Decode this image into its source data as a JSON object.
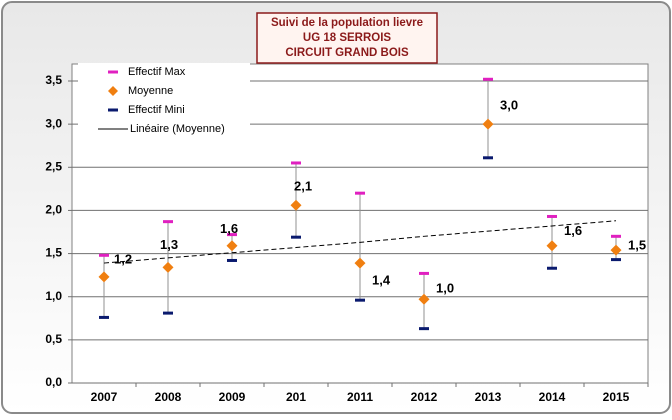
{
  "chart_data": {
    "type": "range",
    "title": [
      "Suivi de la population lievre",
      "UG  18  SERROIS",
      "CIRCUIT GRAND BOIS"
    ],
    "categories": [
      "2007",
      "2008",
      "2009",
      "201",
      "2011",
      "2012",
      "2013",
      "2014",
      "2015"
    ],
    "series": [
      {
        "name": "Effectif Max",
        "color": "#e020c0",
        "values": [
          1.48,
          1.87,
          1.72,
          2.55,
          2.2,
          1.27,
          3.52,
          1.93,
          1.7
        ]
      },
      {
        "name": "Moyenne",
        "color": "#f07f10",
        "values": [
          1.23,
          1.34,
          1.59,
          2.06,
          1.39,
          0.97,
          3.0,
          1.59,
          1.54
        ],
        "value_labels": [
          "1,2",
          "1,3",
          "1,6",
          "2,1",
          "1,4",
          "1,0",
          "3,0",
          "1,6",
          "1,5"
        ]
      },
      {
        "name": "Effectif Mini",
        "color": "#0a1a6e",
        "values": [
          0.76,
          0.81,
          1.42,
          1.69,
          0.96,
          0.63,
          2.61,
          1.33,
          1.43
        ]
      },
      {
        "name": "Linéaire (Moyenne)",
        "color": "#000000",
        "values": [
          1.39,
          1.45,
          1.51,
          1.57,
          1.63,
          1.7,
          1.76,
          1.82,
          1.88
        ]
      }
    ],
    "ylim": [
      0,
      3.5
    ],
    "yticks": [
      {
        "value": 0,
        "label": "0,0"
      },
      {
        "value": 0.5,
        "label": "0,5"
      },
      {
        "value": 1,
        "label": "1,0"
      },
      {
        "value": 1.5,
        "label": "1,5"
      },
      {
        "value": 2,
        "label": "2,0"
      },
      {
        "value": 2.5,
        "label": "2,5"
      },
      {
        "value": 3,
        "label": "3,0"
      },
      {
        "value": 3.5,
        "label": "3,5"
      }
    ],
    "grid": true,
    "legend": "top-left"
  }
}
